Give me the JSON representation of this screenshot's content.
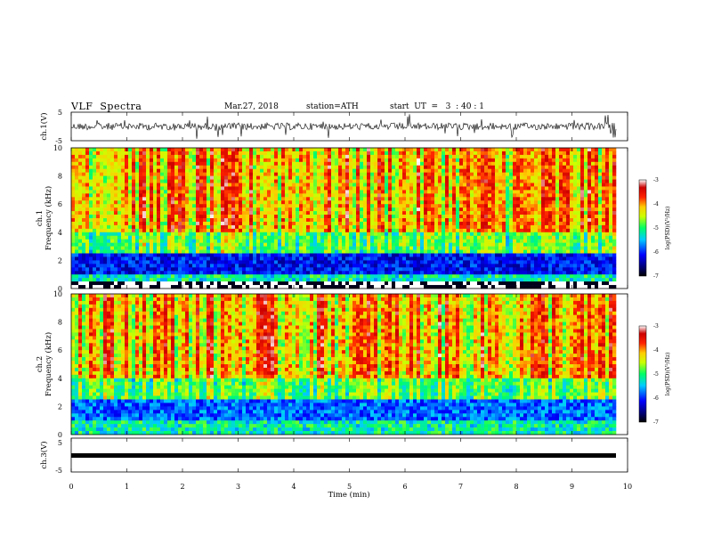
{
  "header": {
    "title": "VLF  Spectra",
    "date": "Mar.27, 2018",
    "station": "station=ATH",
    "start": "start  UT  =   3  : 40 : 1"
  },
  "chart_data": [
    {
      "type": "line",
      "ylabel": "ch.1(V)",
      "ylim": [
        -5,
        5
      ],
      "yticks": [
        "5",
        "-5"
      ],
      "xlim": [
        0,
        10
      ],
      "description_level": 0.0
    },
    {
      "type": "heatmap",
      "ylabel_top": "ch.1",
      "ylabel": "Frequency  (kHz)",
      "ylim": [
        0,
        10
      ],
      "yticks": [
        "0",
        "2",
        "4",
        "6",
        "8",
        "10"
      ],
      "xlim": [
        0,
        10
      ],
      "colorbar": {
        "label": "log(PSD)(V²/Hz)",
        "range": [
          -7,
          -3
        ],
        "ticks": [
          "-3",
          "-4",
          "-5",
          "-6",
          "-7"
        ]
      }
    },
    {
      "type": "heatmap",
      "ylabel_top": "ch.2",
      "ylabel": "Frequency  (kHz)",
      "ylim": [
        0,
        10
      ],
      "yticks": [
        "0",
        "2",
        "4",
        "6",
        "8",
        "10"
      ],
      "xlim": [
        0,
        10
      ],
      "colorbar": {
        "label": "log(PSD)(V²/Hz)",
        "range": [
          -7,
          -3
        ],
        "ticks": [
          "-3",
          "-4",
          "-5",
          "-6",
          "-7"
        ]
      }
    },
    {
      "type": "line",
      "ylabel": "ch.3(V)",
      "ylim": [
        -5,
        5
      ],
      "yticks": [
        "5",
        "-5"
      ],
      "xlim": [
        0,
        10
      ],
      "xlabel": "Time  (min)",
      "xticks": [
        "0",
        "1",
        "2",
        "3",
        "4",
        "5",
        "6",
        "7",
        "8",
        "9",
        "10"
      ]
    }
  ]
}
